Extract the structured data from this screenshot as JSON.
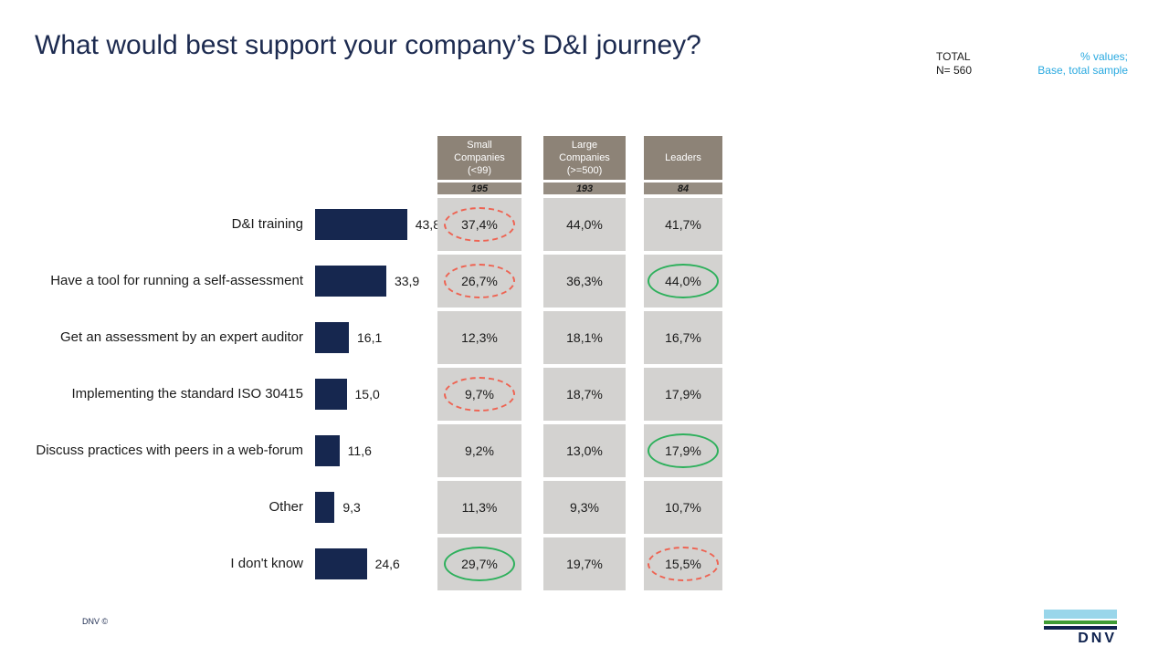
{
  "title": "What would best support your company’s D&I journey?",
  "header_right": {
    "total_line1": "TOTAL",
    "total_line2": "N= 560",
    "note_line1": "% values;",
    "note_line2": "Base, total sample"
  },
  "footer": {
    "copyright": "DNV ©",
    "logo_text": "DNV"
  },
  "colors": {
    "title_navy": "#1d2b50",
    "bar_navy": "#16274f",
    "header_taupe": "#8d8377",
    "n_band_taupe": "#968d82",
    "cell_gray": "#d3d2d0",
    "note_cyan": "#29a9e0",
    "highlight_red": "#ee6352",
    "highlight_green": "#2eb05c",
    "logo_lightblue": "#99d6ea",
    "logo_green": "#3f9c35",
    "logo_navy": "#10234f"
  },
  "chart_data": {
    "type": "bar",
    "orientation": "horizontal",
    "title": "What would best support your company’s D&I journey?",
    "total_sample": {
      "label": "TOTAL",
      "n": 560
    },
    "categories": [
      "D&I training",
      "Have a tool for running  a self-assessment",
      "Get an assessment by an expert auditor",
      "Implementing  the standard ISO 30415",
      "Discuss practices with peers in a web-forum",
      "Other",
      "I don't know"
    ],
    "values": [
      43.8,
      33.9,
      16.1,
      15.0,
      11.6,
      9.3,
      24.6
    ],
    "value_labels": [
      "43,8",
      "33,9",
      "16,1",
      "15,0",
      "11,6",
      "9,3",
      "24,6"
    ],
    "xlim": [
      0,
      50
    ],
    "grid": false,
    "legend": false,
    "groups": [
      {
        "label": "Small Companies (<99)",
        "n": "195",
        "values_pct": [
          "37,4%",
          "26,7%",
          "12,3%",
          "9,7%",
          "9,2%",
          "11,3%",
          "29,7%"
        ],
        "highlights": [
          "red-dashed",
          "red-dashed",
          null,
          "red-dashed",
          null,
          null,
          "green-solid"
        ]
      },
      {
        "label": "Large Companies (>=500)",
        "n": "193",
        "values_pct": [
          "44,0%",
          "36,3%",
          "18,1%",
          "18,7%",
          "13,0%",
          "9,3%",
          "19,7%"
        ],
        "highlights": [
          null,
          null,
          null,
          null,
          null,
          null,
          null
        ]
      },
      {
        "label": "Leaders",
        "n": "84",
        "values_pct": [
          "41,7%",
          "44,0%",
          "16,7%",
          "17,9%",
          "17,9%",
          "10,7%",
          "15,5%"
        ],
        "highlights": [
          null,
          "green-solid",
          null,
          null,
          "green-solid",
          null,
          "red-dashed"
        ]
      }
    ]
  }
}
